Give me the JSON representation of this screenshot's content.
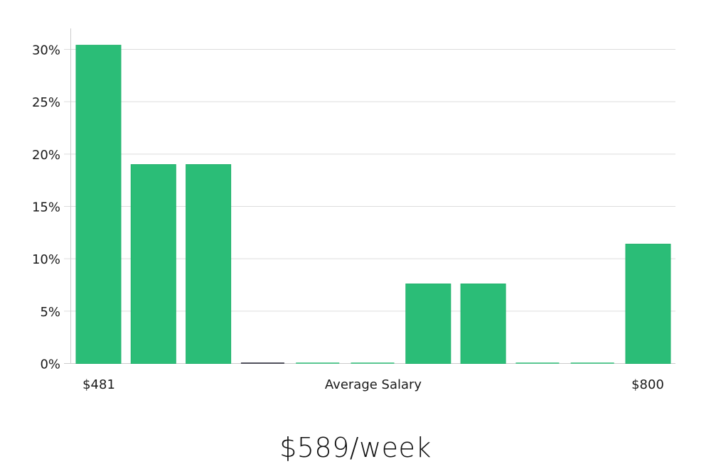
{
  "chart_data": {
    "type": "bar",
    "title": "",
    "xlabel": "Average Salary",
    "ylabel": "",
    "x_range_labels": {
      "min": "$481",
      "max": "$800"
    },
    "categories": [
      "bin1",
      "bin2",
      "bin3",
      "bin4",
      "bin5",
      "bin6",
      "bin7",
      "bin8",
      "bin9",
      "bin10",
      "bin11"
    ],
    "values": [
      30.4,
      19.0,
      19.0,
      0,
      0,
      0,
      7.6,
      7.6,
      0,
      0,
      11.4
    ],
    "value_unit": "%",
    "ylim": [
      0,
      32
    ],
    "yticks": [
      0,
      5,
      10,
      15,
      20,
      25,
      30
    ],
    "ytick_labels": [
      "0%",
      "5%",
      "10%",
      "15%",
      "20%",
      "25%",
      "30%"
    ],
    "grid": true,
    "legend": null,
    "colors": {
      "bar": "#2bbd77",
      "bar_edge": "#22b26c",
      "highlight_line": "#1f1f2e",
      "grid": "#dddddd",
      "axis": "#cccccc"
    },
    "highlighted_bin_index": 3
  },
  "labels": {
    "x_min": "$481",
    "x_center": "Average Salary",
    "x_max": "$800",
    "summary": "$589/week"
  }
}
